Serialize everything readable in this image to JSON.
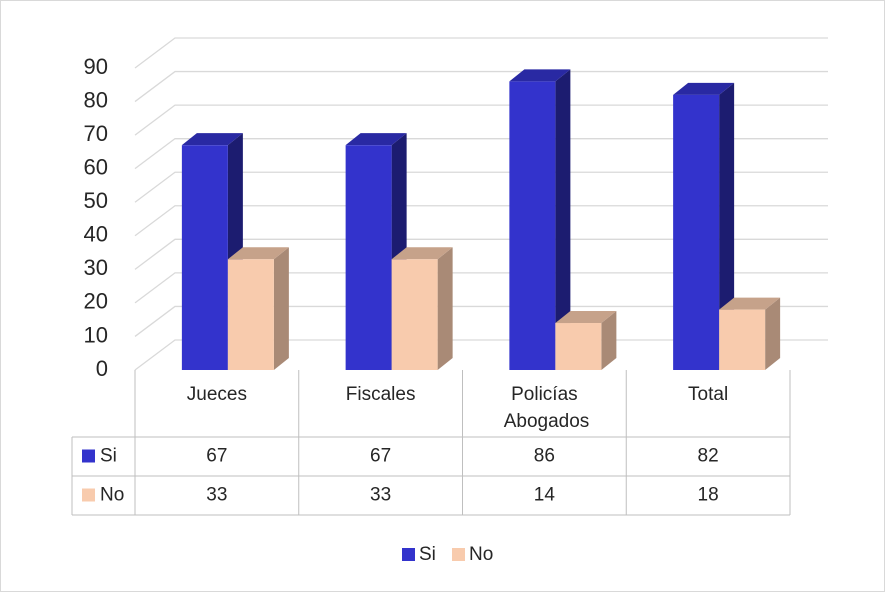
{
  "chart_data": {
    "type": "bar3d",
    "categories": [
      "Jueces",
      "Fiscales",
      "Policías Abogados",
      "Total"
    ],
    "series": [
      {
        "name": "Si",
        "color": "#3333cc",
        "values": [
          67,
          67,
          86,
          82
        ]
      },
      {
        "name": "No",
        "color": "#f8cbad",
        "values": [
          33,
          33,
          14,
          18
        ]
      }
    ],
    "ylim": [
      0,
      90
    ],
    "yticks": [
      0,
      10,
      20,
      30,
      40,
      50,
      60,
      70,
      80,
      90
    ],
    "grid": true,
    "legend": "bottom",
    "data_table": true
  }
}
